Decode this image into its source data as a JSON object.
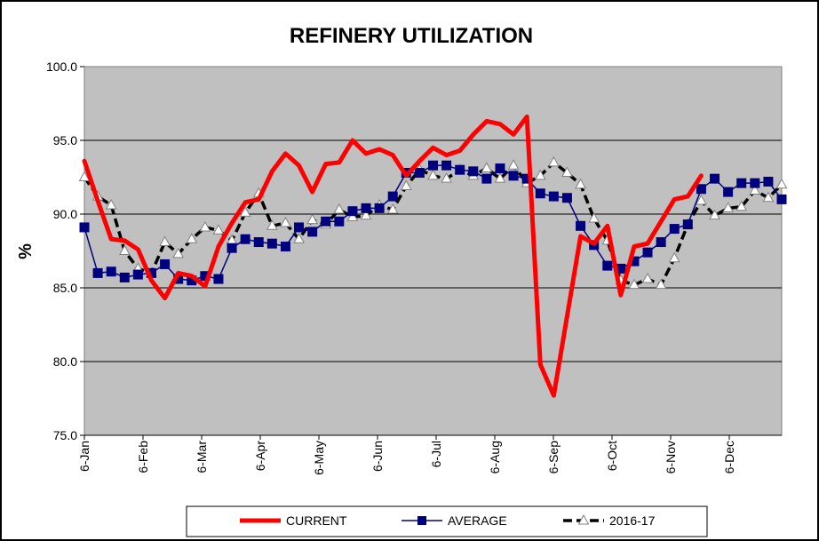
{
  "chart_data": {
    "type": "line",
    "title": "REFINERY UTILIZATION",
    "ylabel": "%",
    "xlabel": "",
    "ylim": [
      75.0,
      100.0
    ],
    "yticks": [
      "75.0",
      "80.0",
      "85.0",
      "90.0",
      "95.0",
      "100.0"
    ],
    "xticks": [
      "6-Jan",
      "6-Feb",
      "6-Mar",
      "6-Apr",
      "6-May",
      "6-Jun",
      "6-Jul",
      "6-Aug",
      "6-Sep",
      "6-Oct",
      "6-Nov",
      "6-Dec"
    ],
    "grid": "horizontal",
    "legend_position": "bottom",
    "plot_background": "#c0c0c0",
    "series": [
      {
        "name": "CURRENT",
        "color": "#ff0000",
        "marker": "none",
        "values": [
          93.6,
          90.9,
          88.3,
          88.2,
          87.6,
          85.5,
          84.3,
          86.0,
          85.8,
          85.1,
          87.8,
          89.4,
          90.8,
          91.0,
          92.9,
          94.1,
          93.3,
          91.5,
          93.4,
          93.5,
          95.0,
          94.1,
          94.4,
          94.0,
          92.6,
          93.6,
          94.5,
          94.0,
          94.3,
          95.4,
          96.3,
          96.1,
          95.4,
          96.6,
          79.8,
          77.7,
          83.1,
          88.5,
          88.0,
          89.2,
          84.5,
          87.8,
          88.0,
          89.5,
          91.0,
          91.2,
          92.6
        ]
      },
      {
        "name": "AVERAGE",
        "color": "#00007f",
        "marker": "square",
        "values": [
          89.1,
          86.0,
          86.1,
          85.7,
          85.9,
          86.0,
          86.6,
          85.6,
          85.5,
          85.8,
          85.6,
          87.7,
          88.3,
          88.1,
          88.0,
          87.8,
          89.1,
          88.8,
          89.5,
          89.5,
          90.2,
          90.4,
          90.4,
          91.2,
          92.8,
          92.8,
          93.3,
          93.3,
          93.0,
          92.9,
          92.4,
          93.1,
          92.6,
          92.4,
          91.4,
          91.2,
          91.1,
          89.2,
          87.9,
          86.5,
          86.3,
          86.8,
          87.4,
          88.1,
          89.0,
          89.3,
          91.7,
          92.4,
          91.5,
          92.1,
          92.1,
          92.2,
          91.0
        ]
      },
      {
        "name": "2016-17",
        "color": "#000000",
        "marker": "triangle",
        "values": [
          92.5,
          91.2,
          90.6,
          87.5,
          86.3,
          86.0,
          88.1,
          87.3,
          88.3,
          89.1,
          88.9,
          88.2,
          90.1,
          91.4,
          89.2,
          89.4,
          88.3,
          89.6,
          89.3,
          90.3,
          89.8,
          89.9,
          90.6,
          90.3,
          91.9,
          93.0,
          92.6,
          92.4,
          93.0,
          92.6,
          93.1,
          92.4,
          93.3,
          92.1,
          92.6,
          93.5,
          92.8,
          92.0,
          89.7,
          88.2,
          85.5,
          85.2,
          85.6,
          85.2,
          87.0,
          89.3,
          90.9,
          89.9,
          90.4,
          90.5,
          91.6,
          91.1,
          92.0
        ]
      }
    ]
  }
}
